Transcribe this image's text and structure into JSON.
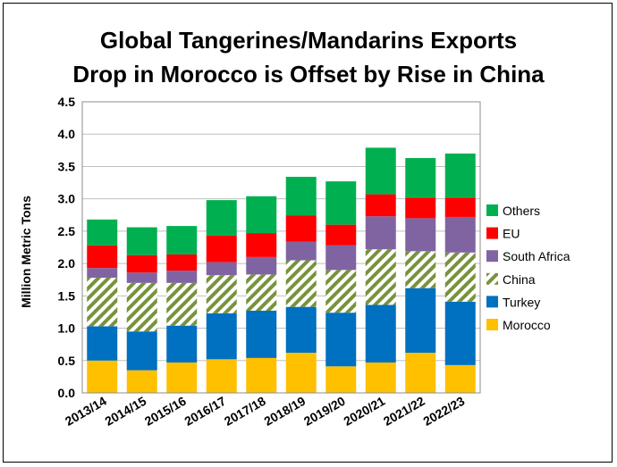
{
  "chart_data": {
    "type": "bar",
    "stacked": true,
    "title": "Global Tangerines/Mandarins Exports",
    "subtitle": "Drop in Morocco is Offset by Rise in China",
    "ylabel": "Million Metric Tons",
    "xlabel": "",
    "ylim": [
      0,
      4.5
    ],
    "yticks": [
      "0.0",
      "0.5",
      "1.0",
      "1.5",
      "2.0",
      "2.5",
      "3.0",
      "3.5",
      "4.0",
      "4.5"
    ],
    "categories": [
      "2013/14",
      "2014/15",
      "2015/16",
      "2016/17",
      "2017/18",
      "2018/19",
      "2019/20",
      "2020/21",
      "2021/22",
      "2022/23"
    ],
    "grid": true,
    "legend_position": "right",
    "series": [
      {
        "name": "Morocco",
        "color": "#FFC000",
        "values": [
          0.5,
          0.35,
          0.47,
          0.52,
          0.54,
          0.62,
          0.41,
          0.47,
          0.62,
          0.43
        ]
      },
      {
        "name": "Turkey",
        "color": "#0070C0",
        "values": [
          0.53,
          0.6,
          0.57,
          0.71,
          0.73,
          0.71,
          0.83,
          0.89,
          1.0,
          0.98
        ]
      },
      {
        "name": "China",
        "color": "#77933C",
        "pattern": "hatch",
        "values": [
          0.75,
          0.75,
          0.66,
          0.59,
          0.56,
          0.72,
          0.66,
          0.86,
          0.57,
          0.76
        ]
      },
      {
        "name": "South Africa",
        "color": "#8064A2",
        "values": [
          0.15,
          0.16,
          0.19,
          0.2,
          0.27,
          0.29,
          0.38,
          0.51,
          0.51,
          0.55
        ]
      },
      {
        "name": "EU",
        "color": "#FF0000",
        "values": [
          0.35,
          0.27,
          0.25,
          0.41,
          0.37,
          0.4,
          0.32,
          0.34,
          0.32,
          0.3
        ]
      },
      {
        "name": "Others",
        "color": "#00B050",
        "values": [
          0.4,
          0.43,
          0.44,
          0.55,
          0.57,
          0.6,
          0.67,
          0.72,
          0.61,
          0.68
        ]
      }
    ]
  }
}
